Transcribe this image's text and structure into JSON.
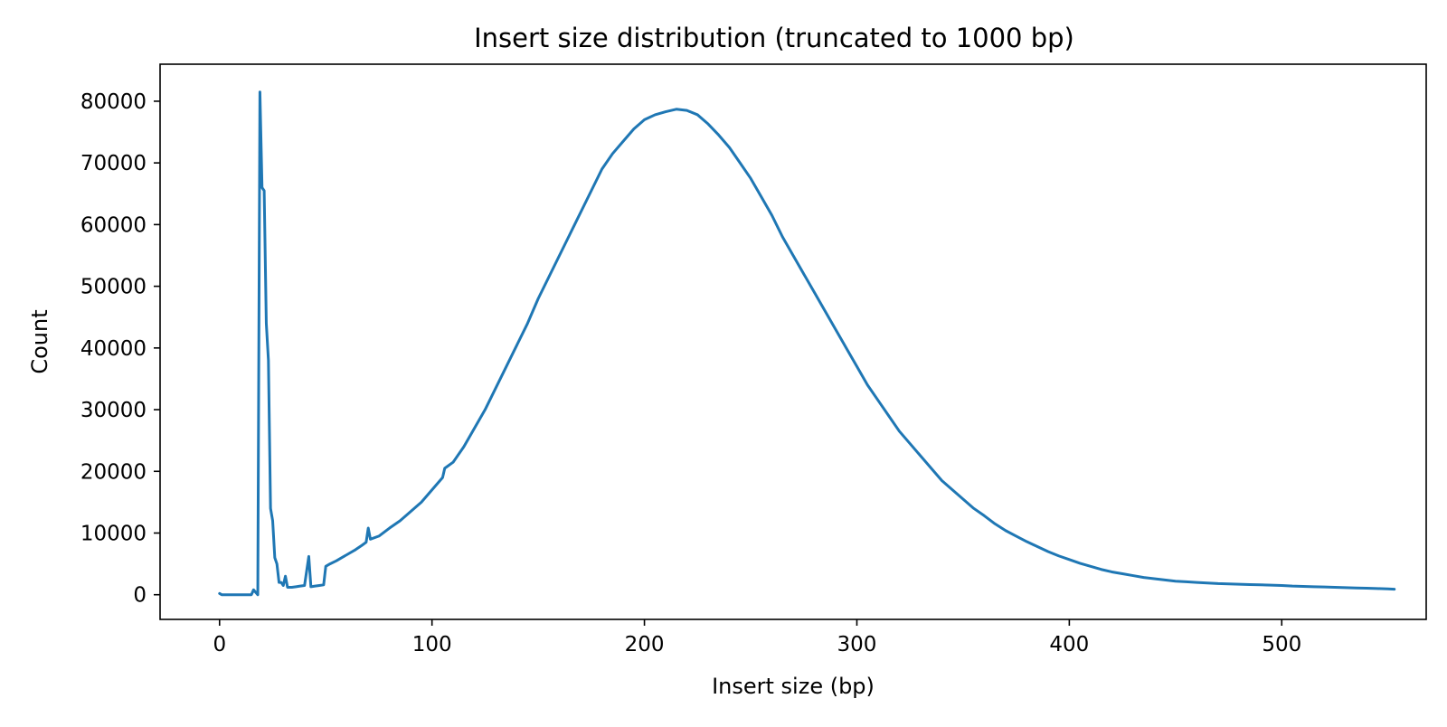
{
  "chart_data": {
    "type": "line",
    "title": "Insert size distribution (truncated to 1000 bp)",
    "xlabel": "Insert size (bp)",
    "ylabel": "Count",
    "xlim": [
      -28,
      568
    ],
    "ylim": [
      -4000,
      86000
    ],
    "xticks": [
      0,
      100,
      200,
      300,
      400,
      500
    ],
    "yticks": [
      0,
      10000,
      20000,
      30000,
      40000,
      50000,
      60000,
      70000,
      80000
    ],
    "grid": false,
    "series": [
      {
        "color": "#1f77b4",
        "points": [
          [
            0,
            200
          ],
          [
            1,
            0
          ],
          [
            5,
            0
          ],
          [
            10,
            0
          ],
          [
            15,
            0
          ],
          [
            16,
            800
          ],
          [
            17,
            400
          ],
          [
            18,
            0
          ],
          [
            19,
            81500
          ],
          [
            20,
            66000
          ],
          [
            21,
            65500
          ],
          [
            22,
            44000
          ],
          [
            23,
            38000
          ],
          [
            24,
            14000
          ],
          [
            25,
            12000
          ],
          [
            26,
            6000
          ],
          [
            27,
            5000
          ],
          [
            28,
            2000
          ],
          [
            29,
            2000
          ],
          [
            30,
            1500
          ],
          [
            31,
            3000
          ],
          [
            32,
            1200
          ],
          [
            34,
            1200
          ],
          [
            36,
            1300
          ],
          [
            38,
            1400
          ],
          [
            40,
            1500
          ],
          [
            42,
            6200
          ],
          [
            43,
            1300
          ],
          [
            45,
            1400
          ],
          [
            47,
            1500
          ],
          [
            49,
            1600
          ],
          [
            50,
            4600
          ],
          [
            52,
            5000
          ],
          [
            55,
            5500
          ],
          [
            58,
            6100
          ],
          [
            61,
            6700
          ],
          [
            64,
            7300
          ],
          [
            67,
            8000
          ],
          [
            69,
            8500
          ],
          [
            70,
            10800
          ],
          [
            71,
            9000
          ],
          [
            75,
            9500
          ],
          [
            80,
            10800
          ],
          [
            85,
            12000
          ],
          [
            90,
            13500
          ],
          [
            95,
            15000
          ],
          [
            100,
            17000
          ],
          [
            105,
            19000
          ],
          [
            106,
            20500
          ],
          [
            110,
            21500
          ],
          [
            115,
            24000
          ],
          [
            120,
            27000
          ],
          [
            125,
            30000
          ],
          [
            130,
            33500
          ],
          [
            135,
            37000
          ],
          [
            140,
            40500
          ],
          [
            145,
            44000
          ],
          [
            150,
            48000
          ],
          [
            155,
            51500
          ],
          [
            160,
            55000
          ],
          [
            165,
            58500
          ],
          [
            170,
            62000
          ],
          [
            175,
            65500
          ],
          [
            180,
            69000
          ],
          [
            185,
            71500
          ],
          [
            190,
            73500
          ],
          [
            195,
            75500
          ],
          [
            200,
            77000
          ],
          [
            205,
            77800
          ],
          [
            210,
            78300
          ],
          [
            215,
            78700
          ],
          [
            220,
            78500
          ],
          [
            225,
            77800
          ],
          [
            230,
            76300
          ],
          [
            235,
            74500
          ],
          [
            240,
            72500
          ],
          [
            245,
            70000
          ],
          [
            250,
            67500
          ],
          [
            255,
            64500
          ],
          [
            260,
            61500
          ],
          [
            265,
            58000
          ],
          [
            270,
            55000
          ],
          [
            275,
            52000
          ],
          [
            280,
            49000
          ],
          [
            285,
            46000
          ],
          [
            290,
            43000
          ],
          [
            295,
            40000
          ],
          [
            300,
            37000
          ],
          [
            305,
            34000
          ],
          [
            310,
            31500
          ],
          [
            315,
            29000
          ],
          [
            320,
            26500
          ],
          [
            325,
            24500
          ],
          [
            330,
            22500
          ],
          [
            335,
            20500
          ],
          [
            340,
            18500
          ],
          [
            345,
            17000
          ],
          [
            350,
            15500
          ],
          [
            355,
            14000
          ],
          [
            360,
            12800
          ],
          [
            365,
            11500
          ],
          [
            370,
            10400
          ],
          [
            375,
            9500
          ],
          [
            380,
            8600
          ],
          [
            385,
            7800
          ],
          [
            390,
            7000
          ],
          [
            395,
            6300
          ],
          [
            400,
            5700
          ],
          [
            405,
            5100
          ],
          [
            410,
            4600
          ],
          [
            415,
            4100
          ],
          [
            420,
            3700
          ],
          [
            425,
            3400
          ],
          [
            430,
            3100
          ],
          [
            435,
            2800
          ],
          [
            440,
            2600
          ],
          [
            445,
            2400
          ],
          [
            450,
            2200
          ],
          [
            455,
            2100
          ],
          [
            460,
            2000
          ],
          [
            465,
            1900
          ],
          [
            470,
            1800
          ],
          [
            475,
            1750
          ],
          [
            480,
            1700
          ],
          [
            485,
            1650
          ],
          [
            490,
            1600
          ],
          [
            495,
            1550
          ],
          [
            500,
            1500
          ],
          [
            505,
            1400
          ],
          [
            510,
            1350
          ],
          [
            515,
            1300
          ],
          [
            520,
            1250
          ],
          [
            525,
            1200
          ],
          [
            530,
            1150
          ],
          [
            535,
            1100
          ],
          [
            540,
            1050
          ],
          [
            545,
            1000
          ],
          [
            550,
            950
          ],
          [
            553,
            900
          ]
        ]
      }
    ]
  }
}
